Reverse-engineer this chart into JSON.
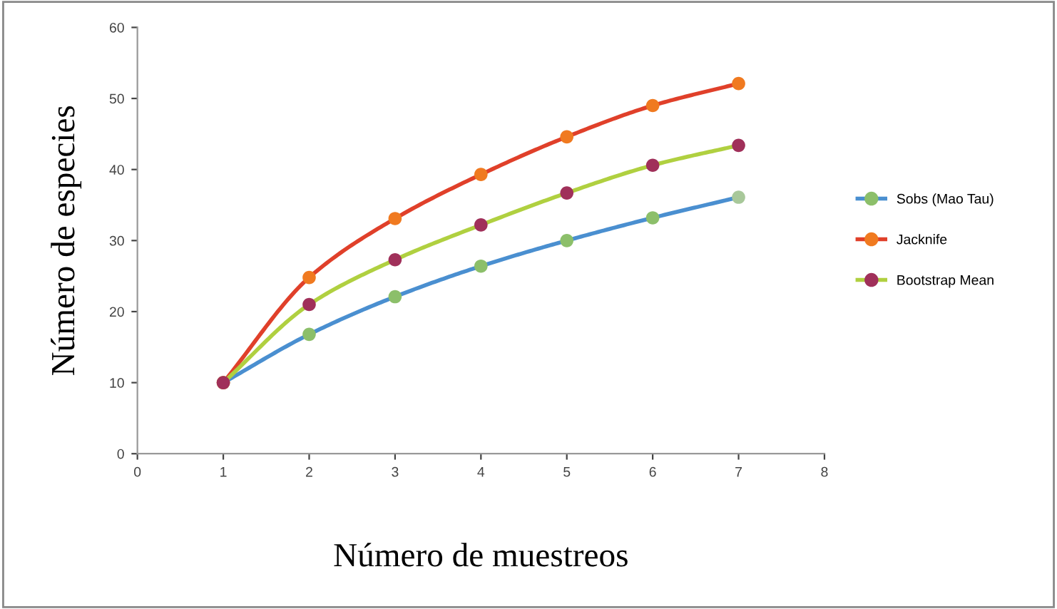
{
  "chart_data": {
    "type": "line",
    "xlabel": "Número de muestreos",
    "ylabel": "Número de especies",
    "x": [
      1,
      2,
      3,
      4,
      5,
      6,
      7
    ],
    "series": [
      {
        "name": "Sobs (Mao Tau)",
        "color": "#4a8fd0",
        "colors": [
          "#8cbf6a",
          "#8cbf6a",
          "#8cbf6a",
          "#8cbf6a",
          "#8cbf6a",
          "#8cbf6a",
          "#a8c89a"
        ],
        "values": [
          10,
          16.8,
          22.1,
          26.4,
          30.0,
          33.2,
          36.1
        ]
      },
      {
        "name": "Jacknife",
        "color": "#e0402a",
        "colors": [
          "#f07a20",
          "#f07a20",
          "#f07a20",
          "#f07a20",
          "#f07a20",
          "#f07a20",
          "#f07a20"
        ],
        "values": [
          10,
          24.8,
          33.1,
          39.3,
          44.6,
          49.0,
          52.1
        ]
      },
      {
        "name": "Bootstrap Mean",
        "color": "#b0d040",
        "colors": [
          "#a0305a",
          "#a0305a",
          "#a0305a",
          "#a0305a",
          "#a0305a",
          "#a0305a",
          "#a0305a"
        ],
        "values": [
          10,
          21.0,
          27.3,
          32.2,
          36.7,
          40.6,
          43.4
        ]
      }
    ],
    "xlim": [
      0,
      8
    ],
    "xticks": [
      0,
      1,
      2,
      3,
      4,
      5,
      6,
      7,
      8
    ],
    "ylim": [
      0,
      60
    ],
    "yticks": [
      0,
      10,
      20,
      30,
      40,
      50,
      60
    ],
    "grid": false,
    "legend": "right",
    "marker": "circle",
    "line_style": "solid"
  }
}
